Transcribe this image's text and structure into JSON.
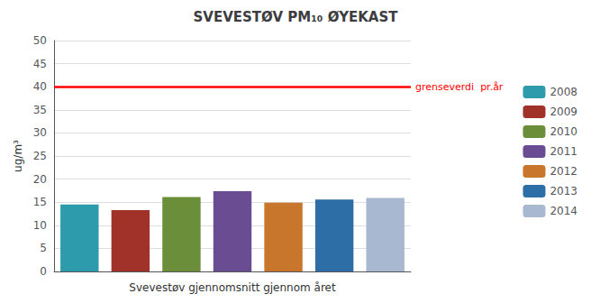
{
  "chart_data": {
    "type": "bar",
    "title": "SVEVESTØV PM₁₀ ØYEKAST",
    "xlabel": "Svevestøv gjennomsnitt gjennom året",
    "ylabel": "ug/m³",
    "categories": [
      "2008",
      "2009",
      "2010",
      "2011",
      "2012",
      "2013",
      "2014"
    ],
    "values": [
      14.5,
      13.3,
      16.1,
      17.4,
      14.9,
      15.6,
      15.9
    ],
    "colors": [
      "#2E9BAD",
      "#A0322A",
      "#6B8E3A",
      "#6A4C93",
      "#C8762B",
      "#2E6EA6",
      "#A8B8D0"
    ],
    "ylim": [
      0,
      50
    ],
    "yticks": [
      0,
      5,
      10,
      15,
      20,
      25,
      30,
      35,
      40,
      45,
      50
    ],
    "grid": true,
    "legend": "right",
    "tick_labels": "y",
    "annotations": [
      {
        "type": "hline",
        "y": 40,
        "text": "grenseverdi  pr.år",
        "color": "#FF0000"
      }
    ]
  }
}
